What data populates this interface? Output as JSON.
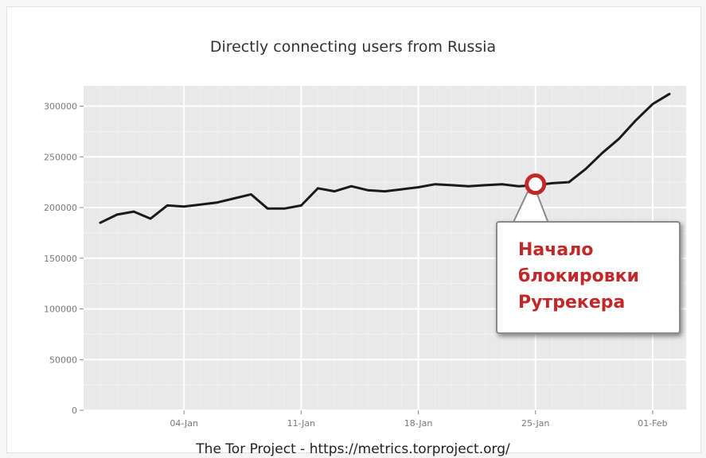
{
  "chart_data": {
    "type": "line",
    "title": "Directly connecting users from Russia",
    "xlabel": "",
    "ylabel": "",
    "ylim": [
      0,
      320000
    ],
    "yticks": [
      0,
      50000,
      100000,
      150000,
      200000,
      250000,
      300000
    ],
    "ytick_labels": [
      "0",
      "50000",
      "100000",
      "150000",
      "200000",
      "250000",
      "300000"
    ],
    "xticks": [
      "2016-01-04",
      "2016-01-11",
      "2016-01-18",
      "2016-01-25",
      "2016-02-01"
    ],
    "xtick_labels": [
      "04-Jan",
      "11-Jan",
      "18-Jan",
      "25-Jan",
      "01-Feb"
    ],
    "xlim": [
      "2015-12-29",
      "2016-02-03"
    ],
    "grid": true,
    "series": [
      {
        "x": [
          "2015-12-30",
          "2015-12-31",
          "2016-01-01",
          "2016-01-02",
          "2016-01-03",
          "2016-01-04",
          "2016-01-05",
          "2016-01-06",
          "2016-01-07",
          "2016-01-08",
          "2016-01-09",
          "2016-01-10",
          "2016-01-11",
          "2016-01-12",
          "2016-01-13",
          "2016-01-14",
          "2016-01-15",
          "2016-01-16",
          "2016-01-17",
          "2016-01-18",
          "2016-01-19",
          "2016-01-20",
          "2016-01-21",
          "2016-01-22",
          "2016-01-23",
          "2016-01-24",
          "2016-01-25",
          "2016-01-26",
          "2016-01-27",
          "2016-01-28",
          "2016-01-29",
          "2016-01-30",
          "2016-01-31",
          "2016-02-01",
          "2016-02-02"
        ],
        "y": [
          185000,
          193000,
          196000,
          189000,
          202000,
          201000,
          203000,
          205000,
          209000,
          213000,
          199000,
          199000,
          202000,
          219000,
          216000,
          221000,
          217000,
          216000,
          218000,
          220000,
          223000,
          222000,
          221000,
          222000,
          223000,
          221000,
          222000,
          224000,
          225000,
          238000,
          254000,
          268000,
          286000,
          302000,
          312000
        ],
        "color": "#1a1a1a"
      }
    ],
    "annotation": {
      "date": "2016-01-25",
      "value": 223000,
      "text": "Начало\nблокировки\nРутрекера",
      "text_color": "#c0282a",
      "marker_color": "#c0282a"
    },
    "footer": "The Tor Project - https://metrics.torproject.org/"
  }
}
